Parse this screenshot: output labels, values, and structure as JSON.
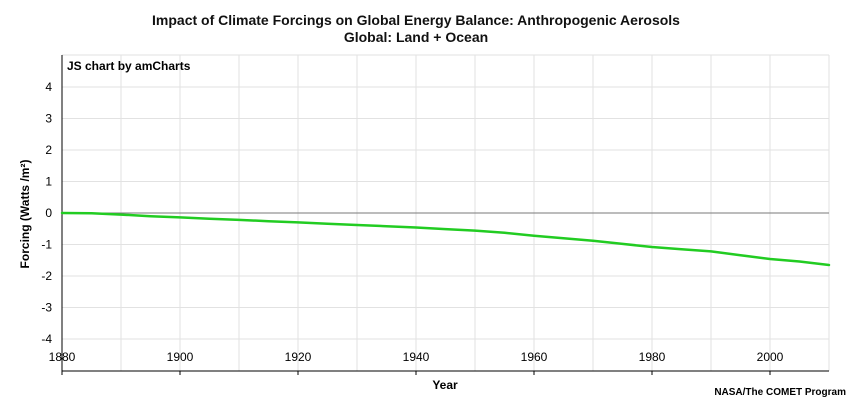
{
  "chart_data": {
    "type": "line",
    "title": "Impact of Climate Forcings on Global Energy Balance: Anthropogenic Aerosols",
    "subtitle": "Global: Land + Ocean",
    "xlabel": "Year",
    "ylabel": "Forcing (Watts /m²)",
    "xlim": [
      1880,
      2010
    ],
    "ylim": [
      -4,
      4
    ],
    "x_ticks": [
      1880,
      1900,
      1920,
      1940,
      1960,
      1980,
      2000
    ],
    "y_ticks": [
      4,
      3,
      2,
      1,
      0,
      -1,
      -2,
      -3,
      -4
    ],
    "grid": true,
    "zero_line": true,
    "series_color": "#22cc22",
    "series": [
      {
        "x": [
          1880,
          1885,
          1890,
          1895,
          1900,
          1905,
          1910,
          1915,
          1920,
          1925,
          1930,
          1935,
          1940,
          1945,
          1950,
          1955,
          1960,
          1965,
          1970,
          1975,
          1980,
          1985,
          1990,
          1995,
          2000,
          2005,
          2010
        ],
        "values": [
          0.0,
          -0.01,
          -0.05,
          -0.1,
          -0.14,
          -0.18,
          -0.22,
          -0.26,
          -0.3,
          -0.34,
          -0.38,
          -0.42,
          -0.46,
          -0.51,
          -0.56,
          -0.63,
          -0.72,
          -0.8,
          -0.88,
          -0.98,
          -1.08,
          -1.15,
          -1.22,
          -1.34,
          -1.46,
          -1.54,
          -1.65
        ]
      }
    ]
  },
  "credits": {
    "watermark": "JS chart by amCharts",
    "source": "NASA/The COMET Program"
  }
}
